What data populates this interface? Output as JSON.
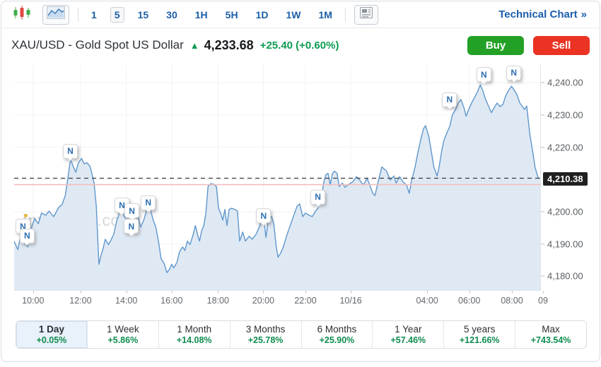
{
  "toolbar": {
    "chart_type_buttons": [
      {
        "name": "candlestick",
        "selected": false
      },
      {
        "name": "area",
        "selected": true
      }
    ],
    "timeframes": [
      {
        "label": "1",
        "selected": false
      },
      {
        "label": "5",
        "selected": true
      },
      {
        "label": "15",
        "selected": false
      },
      {
        "label": "30",
        "selected": false
      },
      {
        "label": "1H",
        "selected": false
      },
      {
        "label": "5H",
        "selected": false
      },
      {
        "label": "1D",
        "selected": false
      },
      {
        "label": "1W",
        "selected": false
      },
      {
        "label": "1M",
        "selected": false
      }
    ],
    "technical_chart_label": "Technical Chart",
    "technical_chart_arrow": "»"
  },
  "header": {
    "title": "XAU/USD - Gold Spot US Dollar",
    "up_arrow": "▲",
    "price": "4,233.68",
    "change": "+25.40",
    "change_pct": "(+0.60%)",
    "buy_label": "Buy",
    "sell_label": "Sell"
  },
  "watermark": {
    "text": "investing",
    "suffix": ".com"
  },
  "chart_data": {
    "type": "area",
    "symbol": "XAU/USD",
    "interval": "5",
    "ylim": [
      4175.5,
      4245.5
    ],
    "y_axis_labels": [
      {
        "value": 4240,
        "label": "4,240.00"
      },
      {
        "value": 4230,
        "label": "4,230.00"
      },
      {
        "value": 4220,
        "label": "4,220.00"
      },
      {
        "value": 4200,
        "label": "4,200.00"
      },
      {
        "value": 4190,
        "label": "4,190.00"
      },
      {
        "value": 4180,
        "label": "4,180.00"
      }
    ],
    "y_gridlines": [
      4240,
      4230,
      4220,
      4210,
      4200,
      4190,
      4180
    ],
    "x_ticks": [
      {
        "label": "10:00",
        "frac": 3.6,
        "grid": true
      },
      {
        "label": "12:00",
        "frac": 12.6,
        "grid": true
      },
      {
        "label": "14:00",
        "frac": 21.3,
        "grid": true
      },
      {
        "label": "16:00",
        "frac": 29.9,
        "grid": true
      },
      {
        "label": "18:00",
        "frac": 38.7,
        "grid": true
      },
      {
        "label": "20:00",
        "frac": 47.3,
        "grid": true
      },
      {
        "label": "22:00",
        "frac": 55.3,
        "grid": true
      },
      {
        "label": "10/16",
        "frac": 63.9,
        "grid": true
      },
      {
        "label": "04:00",
        "frac": 78.4,
        "grid": true
      },
      {
        "label": "06:00",
        "frac": 86.4,
        "grid": true
      },
      {
        "label": "08:00",
        "frac": 94.5,
        "grid": true
      },
      {
        "label": "09",
        "frac": 100.4,
        "grid": false
      }
    ],
    "last_price": 4210.38,
    "last_price_label": "4,210.38",
    "prev_close": 4208.4,
    "news_marker_label": "N",
    "news_markers": [
      {
        "fx": 1.6,
        "fy": 71.3
      },
      {
        "fx": 2.4,
        "fy": 75.6
      },
      {
        "fx": 10.6,
        "fy": 38.1
      },
      {
        "fx": 20.4,
        "fy": 61.9
      },
      {
        "fx": 22.3,
        "fy": 64.4
      },
      {
        "fx": 22.2,
        "fy": 71.3
      },
      {
        "fx": 25.4,
        "fy": 60.9
      },
      {
        "fx": 47.3,
        "fy": 66.6
      },
      {
        "fx": 57.6,
        "fy": 58.4
      },
      {
        "fx": 82.6,
        "fy": 15.3
      },
      {
        "fx": 89.1,
        "fy": 4.1
      },
      {
        "fx": 94.8,
        "fy": 3.4
      }
    ],
    "series": [
      [
        0,
        4190.9
      ],
      [
        0.7,
        4188.3
      ],
      [
        1.3,
        4193
      ],
      [
        2,
        4190
      ],
      [
        2.6,
        4189.1
      ],
      [
        3.2,
        4194.8
      ],
      [
        3.9,
        4197.8
      ],
      [
        4.6,
        4196.3
      ],
      [
        5.2,
        4199.6
      ],
      [
        6,
        4198.9
      ],
      [
        6.6,
        4200.2
      ],
      [
        7.5,
        4198.5
      ],
      [
        8.5,
        4201.4
      ],
      [
        9.1,
        4202.2
      ],
      [
        9.7,
        4205
      ],
      [
        10.2,
        4210.4
      ],
      [
        10.7,
        4216.3
      ],
      [
        11.3,
        4213.7
      ],
      [
        11.7,
        4212.2
      ],
      [
        12.2,
        4215.2
      ],
      [
        12.8,
        4216.5
      ],
      [
        13.3,
        4214.8
      ],
      [
        13.8,
        4215.2
      ],
      [
        14.4,
        4214.1
      ],
      [
        14.8,
        4211.5
      ],
      [
        15.2,
        4208.7
      ],
      [
        15.6,
        4201.7
      ],
      [
        16.1,
        4183.7
      ],
      [
        16.5,
        4186.5
      ],
      [
        16.9,
        4188.7
      ],
      [
        17.3,
        4191.5
      ],
      [
        17.9,
        4189.8
      ],
      [
        18.4,
        4191.3
      ],
      [
        18.9,
        4193
      ],
      [
        19.5,
        4197.4
      ],
      [
        20,
        4199.6
      ],
      [
        20.4,
        4200.7
      ],
      [
        20.9,
        4198.5
      ],
      [
        21.5,
        4197.4
      ],
      [
        21.9,
        4200.2
      ],
      [
        22.3,
        4200.7
      ],
      [
        22.7,
        4195.9
      ],
      [
        23.1,
        4197.4
      ],
      [
        23.5,
        4199.1
      ],
      [
        24,
        4195.2
      ],
      [
        24.6,
        4197.4
      ],
      [
        25.1,
        4200.2
      ],
      [
        25.6,
        4201.7
      ],
      [
        26,
        4200
      ],
      [
        26.4,
        4197.4
      ],
      [
        26.9,
        4195.2
      ],
      [
        27.4,
        4190.9
      ],
      [
        27.9,
        4185.4
      ],
      [
        28.5,
        4183.9
      ],
      [
        29,
        4181.1
      ],
      [
        29.5,
        4182.2
      ],
      [
        29.9,
        4183.7
      ],
      [
        30.3,
        4182.6
      ],
      [
        30.9,
        4184.3
      ],
      [
        31.4,
        4187.6
      ],
      [
        32,
        4189.1
      ],
      [
        32.4,
        4188
      ],
      [
        32.9,
        4190.9
      ],
      [
        33.4,
        4189.8
      ],
      [
        34,
        4193
      ],
      [
        34.4,
        4195.7
      ],
      [
        34.8,
        4193
      ],
      [
        35.2,
        4190.9
      ],
      [
        35.6,
        4194.1
      ],
      [
        36,
        4195.7
      ],
      [
        36.4,
        4199.6
      ],
      [
        36.8,
        4207.8
      ],
      [
        37.3,
        4208.7
      ],
      [
        37.9,
        4208.5
      ],
      [
        38.4,
        4207.8
      ],
      [
        38.8,
        4201.1
      ],
      [
        39.2,
        4199.6
      ],
      [
        39.6,
        4197.4
      ],
      [
        40,
        4200.7
      ],
      [
        40.4,
        4195.7
      ],
      [
        40.8,
        4200.7
      ],
      [
        41.3,
        4201.1
      ],
      [
        41.9,
        4200.7
      ],
      [
        42.4,
        4200.2
      ],
      [
        42.8,
        4190.9
      ],
      [
        43.4,
        4193.7
      ],
      [
        43.9,
        4190.9
      ],
      [
        44.6,
        4192.4
      ],
      [
        45.2,
        4191.5
      ],
      [
        45.9,
        4193
      ],
      [
        46.4,
        4194.8
      ],
      [
        47,
        4197
      ],
      [
        47.4,
        4197.8
      ],
      [
        47.8,
        4192
      ],
      [
        48.3,
        4197.8
      ],
      [
        48.9,
        4198.5
      ],
      [
        49.3,
        4196.3
      ],
      [
        49.7,
        4189.8
      ],
      [
        50.1,
        4185.9
      ],
      [
        50.6,
        4187.2
      ],
      [
        51.1,
        4189.1
      ],
      [
        51.7,
        4192.4
      ],
      [
        52.4,
        4195.7
      ],
      [
        53,
        4198.5
      ],
      [
        53.7,
        4201.7
      ],
      [
        54.2,
        4202.4
      ],
      [
        54.8,
        4198.5
      ],
      [
        55.3,
        4199.6
      ],
      [
        56,
        4198.9
      ],
      [
        56.6,
        4198.5
      ],
      [
        57.2,
        4200.2
      ],
      [
        57.7,
        4201.1
      ],
      [
        58.3,
        4203.9
      ],
      [
        58.8,
        4209.3
      ],
      [
        59.2,
        4211.5
      ],
      [
        59.6,
        4211.9
      ],
      [
        60,
        4208.3
      ],
      [
        60.4,
        4211.7
      ],
      [
        60.8,
        4212.6
      ],
      [
        61.3,
        4211.9
      ],
      [
        61.7,
        4207.8
      ],
      [
        62.3,
        4208.9
      ],
      [
        62.8,
        4207.6
      ],
      [
        63.4,
        4208.3
      ],
      [
        64.3,
        4209.3
      ],
      [
        65,
        4210.9
      ],
      [
        65.6,
        4209.8
      ],
      [
        66.3,
        4208.3
      ],
      [
        67,
        4210.4
      ],
      [
        67.4,
        4208.7
      ],
      [
        68.1,
        4205.7
      ],
      [
        68.5,
        4205
      ],
      [
        69.1,
        4209.3
      ],
      [
        69.8,
        4213.9
      ],
      [
        70.7,
        4212.6
      ],
      [
        71.4,
        4209.8
      ],
      [
        72.1,
        4211.1
      ],
      [
        72.5,
        4208.9
      ],
      [
        73.2,
        4210.9
      ],
      [
        73.8,
        4209.3
      ],
      [
        74.5,
        4208.3
      ],
      [
        75,
        4205.7
      ],
      [
        75.4,
        4209.3
      ],
      [
        76.1,
        4213.7
      ],
      [
        76.6,
        4218
      ],
      [
        77.2,
        4222.4
      ],
      [
        77.7,
        4225.7
      ],
      [
        78.1,
        4226.7
      ],
      [
        78.7,
        4223.5
      ],
      [
        79.2,
        4218.7
      ],
      [
        79.7,
        4213.7
      ],
      [
        80.3,
        4211.1
      ],
      [
        80.7,
        4214.1
      ],
      [
        81.2,
        4219.1
      ],
      [
        81.6,
        4222.2
      ],
      [
        82.2,
        4224.6
      ],
      [
        82.7,
        4226.5
      ],
      [
        83.2,
        4230
      ],
      [
        83.8,
        4231.7
      ],
      [
        84.3,
        4233.7
      ],
      [
        84.8,
        4234.8
      ],
      [
        85.4,
        4232.2
      ],
      [
        85.8,
        4229.6
      ],
      [
        86.3,
        4231.7
      ],
      [
        86.9,
        4233.9
      ],
      [
        87.4,
        4235.4
      ],
      [
        87.9,
        4237
      ],
      [
        88.5,
        4239.3
      ],
      [
        89,
        4237.4
      ],
      [
        89.5,
        4234.8
      ],
      [
        90.1,
        4232.6
      ],
      [
        90.6,
        4230.7
      ],
      [
        91.1,
        4232.2
      ],
      [
        91.7,
        4233.7
      ],
      [
        92.2,
        4232.6
      ],
      [
        92.8,
        4233.3
      ],
      [
        93.3,
        4235.9
      ],
      [
        93.8,
        4237.4
      ],
      [
        94.4,
        4238.9
      ],
      [
        94.9,
        4237.8
      ],
      [
        95.4,
        4236.5
      ],
      [
        96,
        4233.7
      ],
      [
        96.5,
        4232.6
      ],
      [
        96.9,
        4231.7
      ],
      [
        97.3,
        4232.8
      ],
      [
        97.9,
        4223.9
      ],
      [
        98.4,
        4219.1
      ],
      [
        98.9,
        4213.7
      ],
      [
        99.5,
        4210.4
      ],
      [
        100,
        4210.4
      ]
    ]
  },
  "tabs": [
    {
      "label": "1 Day",
      "change": "+0.05%",
      "selected": true
    },
    {
      "label": "1 Week",
      "change": "+5.86%",
      "selected": false
    },
    {
      "label": "1 Month",
      "change": "+14.08%",
      "selected": false
    },
    {
      "label": "3 Months",
      "change": "+25.78%",
      "selected": false
    },
    {
      "label": "6 Months",
      "change": "+25.90%",
      "selected": false
    },
    {
      "label": "1 Year",
      "change": "+57.46%",
      "selected": false
    },
    {
      "label": "5 years",
      "change": "+121.66%",
      "selected": false
    },
    {
      "label": "Max",
      "change": "+743.54%",
      "selected": false
    }
  ],
  "colors": {
    "accent_blue": "#1c5fa7",
    "line_blue": "#5f97cc",
    "fill_blue": "#dfe9f4",
    "green": "#0d9b51",
    "buy_green": "#23a127",
    "sell_red": "#ea3323",
    "prev_close_red": "#f5bcbc",
    "grid": "#f0f2f5",
    "badge_bg": "#202020"
  }
}
